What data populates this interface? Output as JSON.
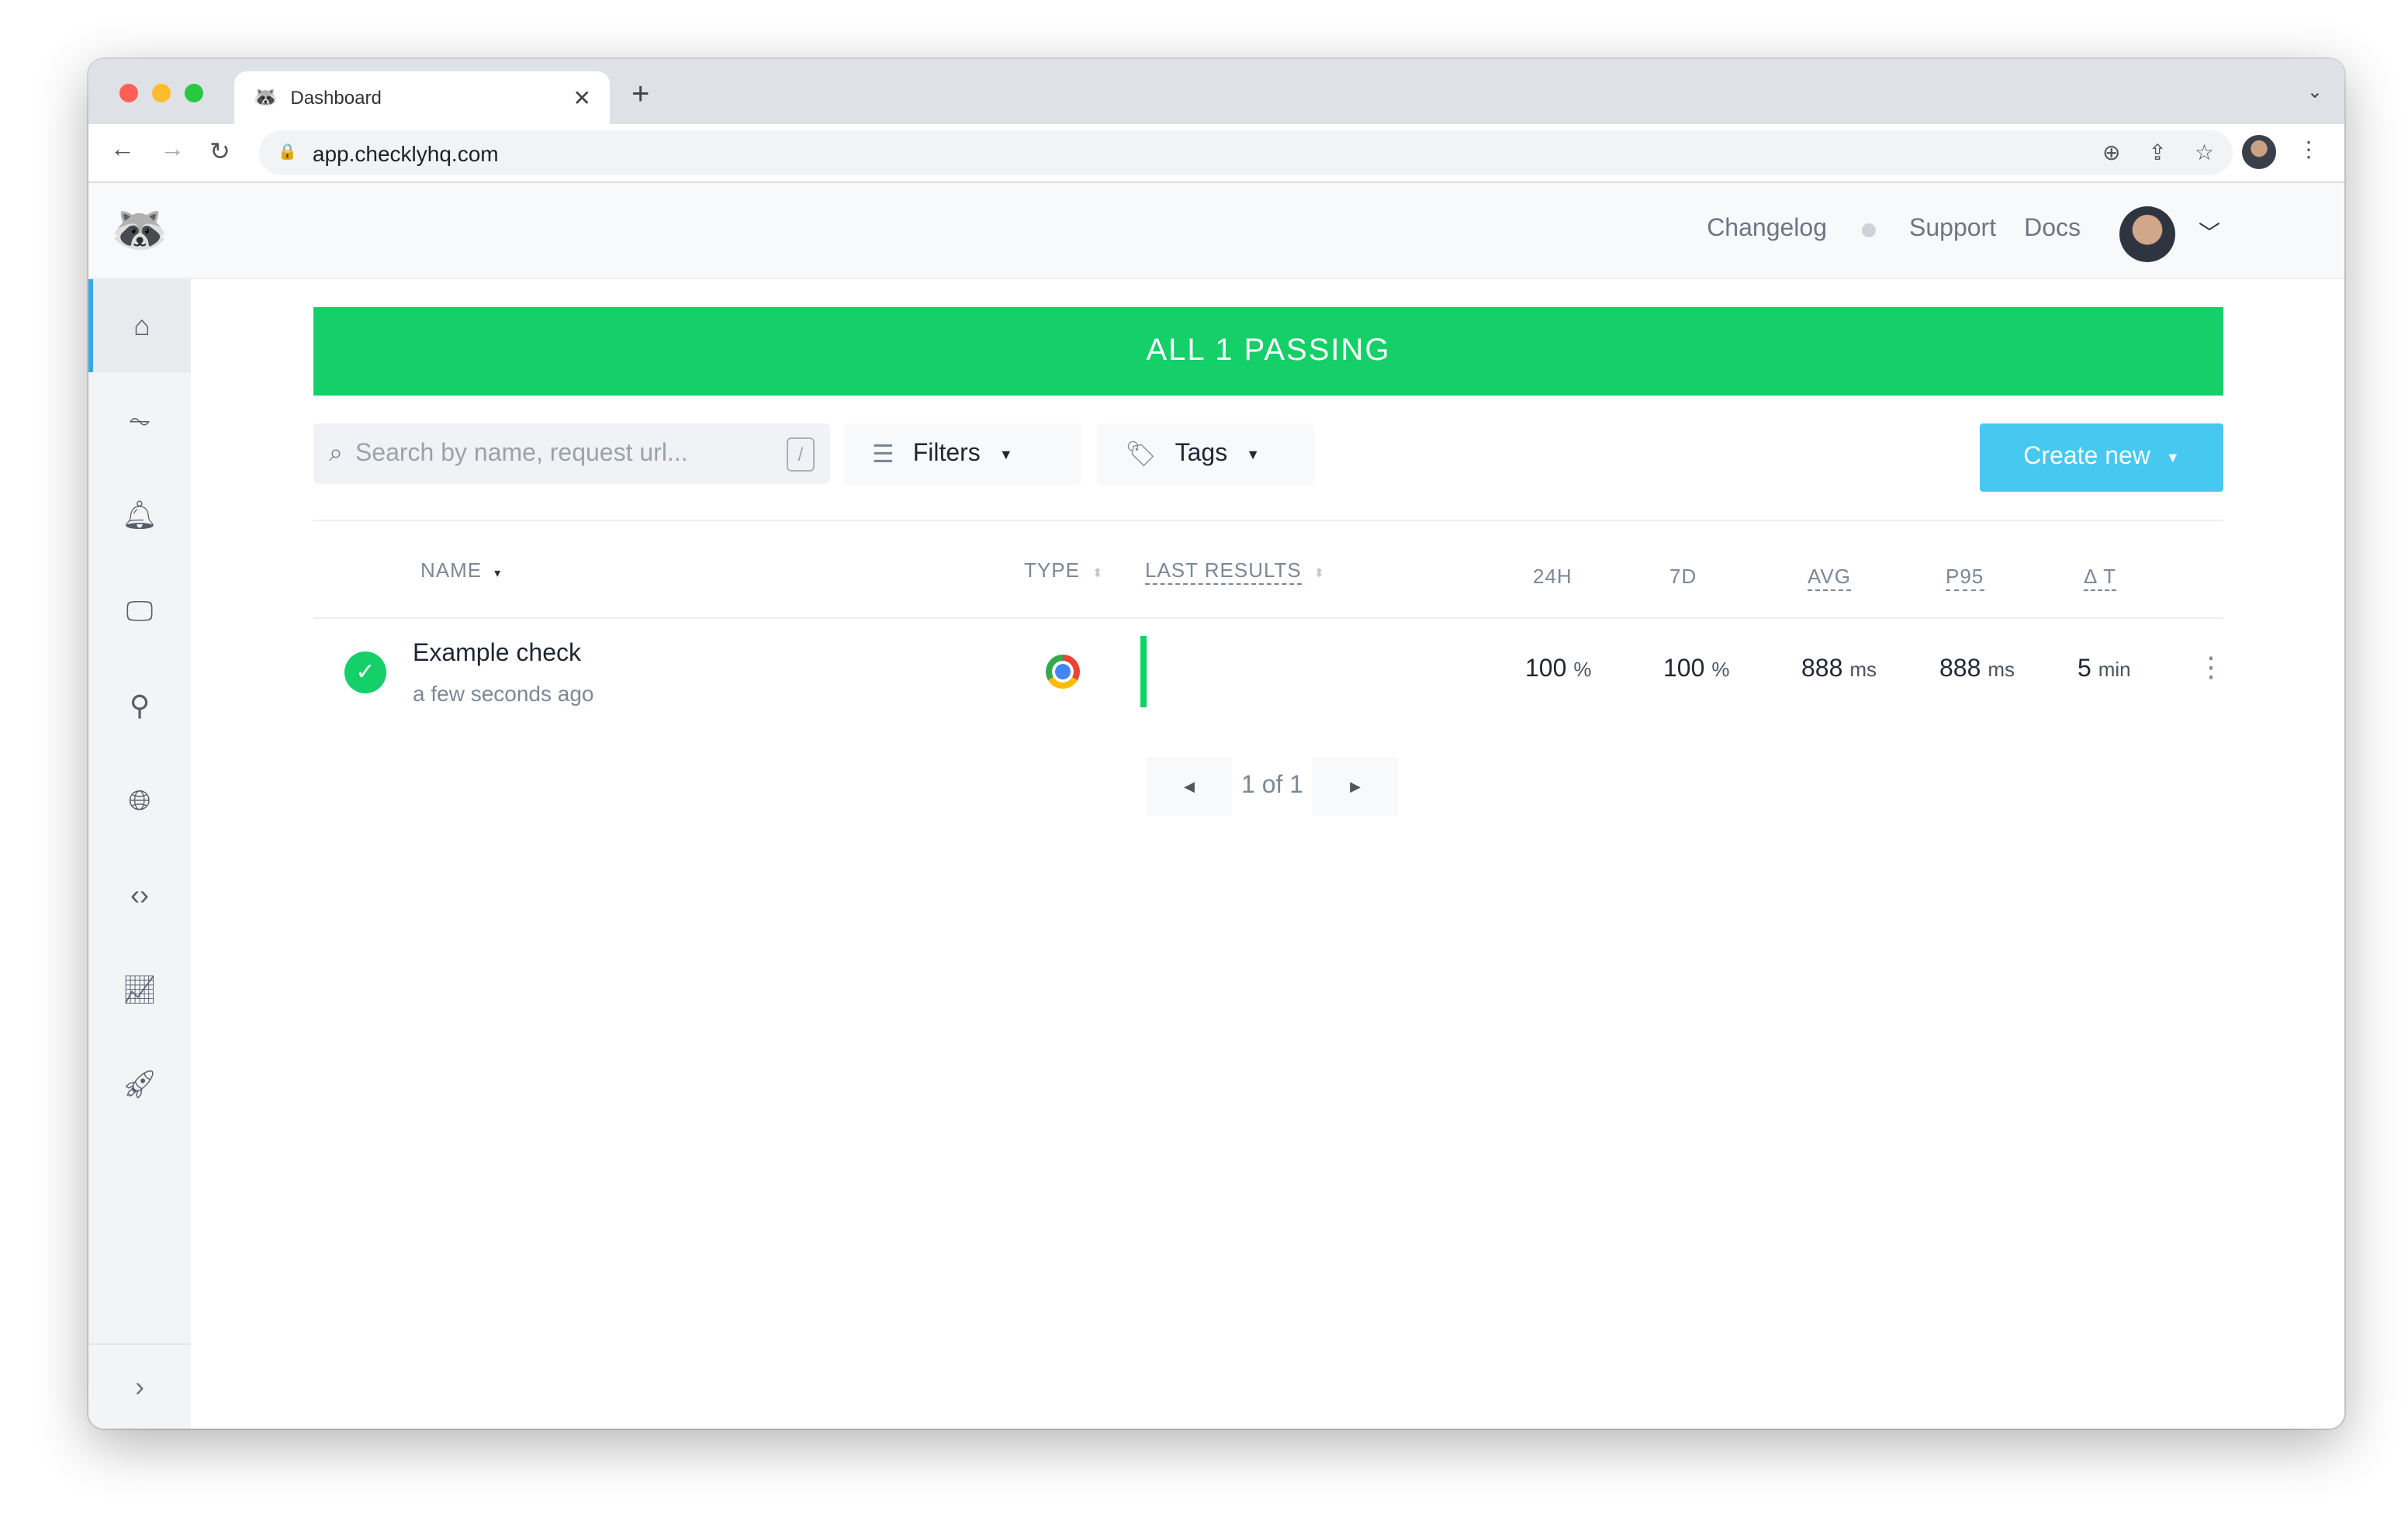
{
  "browser": {
    "tab_title": "Dashboard",
    "url": "app.checklyhq.com"
  },
  "header": {
    "links": [
      "Changelog",
      "Support",
      "Docs"
    ]
  },
  "sidebar": {
    "items": [
      "home-icon",
      "activity-icon",
      "bell-icon",
      "monitor-icon",
      "plug-icon",
      "globe-icon",
      "code-icon",
      "chart-line-icon",
      "rocket-icon"
    ],
    "expand": "chevron-right-icon"
  },
  "banner": {
    "text": "ALL 1 PASSING",
    "color": "#15cf69"
  },
  "toolbar": {
    "search_placeholder": "Search by name, request url...",
    "search_shortcut": "/",
    "filters_label": "Filters",
    "tags_label": "Tags",
    "create_label": "Create new",
    "create_color": "#46c8f0"
  },
  "table": {
    "columns": {
      "name": "NAME",
      "type": "TYPE",
      "last_results": "LAST RESULTS",
      "h24": "24H",
      "d7": "7D",
      "avg": "AVG",
      "p95": "P95",
      "dt": "Δ T"
    },
    "rows": [
      {
        "status": "passing",
        "name": "Example check",
        "updated": "a few seconds ago",
        "type": "browser",
        "h24": "100",
        "h24_unit": "%",
        "d7": "100",
        "d7_unit": "%",
        "avg": "888",
        "avg_unit": "ms",
        "p95": "888",
        "p95_unit": "ms",
        "dt": "5",
        "dt_unit": "min"
      }
    ]
  },
  "pagination": {
    "text": "1 of 1"
  }
}
